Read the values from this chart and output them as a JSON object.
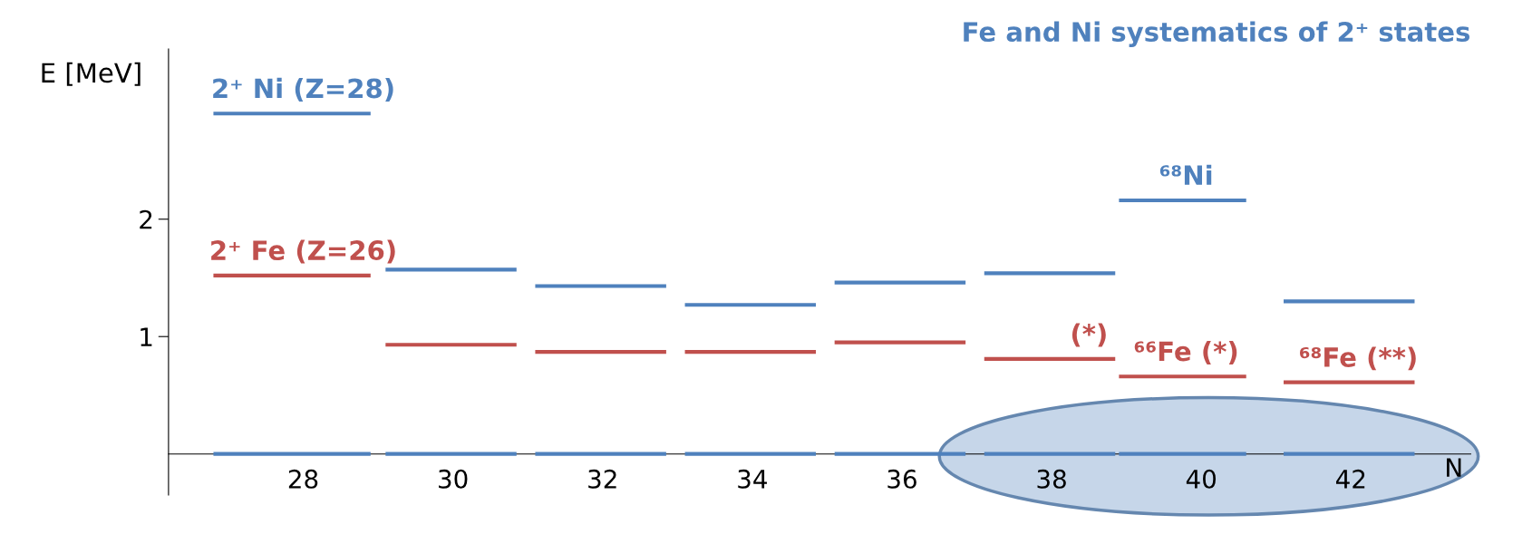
{
  "chart_data": {
    "type": "line",
    "title": "Fe and Ni systematics of 2⁺ states",
    "xlabel": "N",
    "ylabel": "E [MeV]",
    "series": [
      {
        "color": "#4f81bd",
        "x": [
          26.8,
          28.9
        ],
        "values": [
          2.9,
          2.9
        ]
      },
      {
        "color": "#4f81bd",
        "x": [
          29.1,
          30.85
        ],
        "values": [
          1.57,
          1.57
        ]
      },
      {
        "color": "#4f81bd",
        "x": [
          31.1,
          32.85
        ],
        "values": [
          1.43,
          1.43
        ]
      },
      {
        "color": "#4f81bd",
        "x": [
          33.1,
          34.85
        ],
        "values": [
          1.27,
          1.27
        ]
      },
      {
        "color": "#4f81bd",
        "x": [
          35.1,
          36.85
        ],
        "values": [
          1.46,
          1.46
        ]
      },
      {
        "color": "#4f81bd",
        "x": [
          37.1,
          38.85
        ],
        "values": [
          1.54,
          1.54
        ]
      },
      {
        "color": "#4f81bd",
        "x": [
          38.9,
          40.6
        ],
        "values": [
          2.16,
          2.16
        ]
      },
      {
        "color": "#4f81bd",
        "x": [
          41.1,
          42.85
        ],
        "values": [
          1.3,
          1.3
        ]
      },
      {
        "color": "#c0504d",
        "x": [
          26.8,
          28.9
        ],
        "values": [
          1.52,
          1.52
        ]
      },
      {
        "color": "#c0504d",
        "x": [
          29.1,
          30.85
        ],
        "values": [
          0.93,
          0.93
        ]
      },
      {
        "color": "#c0504d",
        "x": [
          31.1,
          32.85
        ],
        "values": [
          0.87,
          0.87
        ]
      },
      {
        "color": "#c0504d",
        "x": [
          33.1,
          34.85
        ],
        "values": [
          0.87,
          0.87
        ]
      },
      {
        "color": "#c0504d",
        "x": [
          35.1,
          36.85
        ],
        "values": [
          0.95,
          0.95
        ]
      },
      {
        "color": "#c0504d",
        "x": [
          37.1,
          38.85
        ],
        "values": [
          0.81,
          0.81
        ]
      },
      {
        "color": "#c0504d",
        "x": [
          38.9,
          40.6
        ],
        "values": [
          0.66,
          0.66
        ]
      },
      {
        "color": "#c0504d",
        "x": [
          41.1,
          42.85
        ],
        "values": [
          0.61,
          0.61
        ]
      },
      {
        "color": "#4f81bd",
        "x": [
          26.8,
          28.9
        ],
        "values": [
          0,
          0
        ]
      },
      {
        "color": "#4f81bd",
        "x": [
          29.1,
          30.85
        ],
        "values": [
          0,
          0
        ]
      },
      {
        "color": "#4f81bd",
        "x": [
          31.1,
          32.85
        ],
        "values": [
          0,
          0
        ]
      },
      {
        "color": "#4f81bd",
        "x": [
          33.1,
          34.85
        ],
        "values": [
          0,
          0
        ]
      },
      {
        "color": "#4f81bd",
        "x": [
          35.1,
          36.85
        ],
        "values": [
          0,
          0
        ]
      },
      {
        "color": "#4f81bd",
        "x": [
          37.1,
          38.85
        ],
        "values": [
          0,
          0
        ]
      },
      {
        "color": "#4f81bd",
        "x": [
          38.9,
          40.6
        ],
        "values": [
          0,
          0
        ]
      },
      {
        "color": "#4f81bd",
        "x": [
          41.1,
          42.85
        ],
        "values": [
          0,
          0
        ]
      }
    ],
    "annotations": [
      {
        "text": "2⁺ Ni (Z=28)",
        "x": 28,
        "y": 2.9
      },
      {
        "text": "2⁺ Fe (Z=26)",
        "x": 28,
        "y": 1.52
      },
      {
        "text": "⁶⁸Ni",
        "x": 39.8,
        "y": 2.16
      },
      {
        "text": "(*)",
        "x": 38.5,
        "y": 0.81
      },
      {
        "text": "⁶⁶Fe (*)",
        "x": 39.8,
        "y": 0.66
      },
      {
        "text": "⁶⁸Fe (**)",
        "x": 42.1,
        "y": 0.61
      }
    ],
    "xlim": [
      26.2,
      43.6
    ],
    "xticks": [
      28,
      30,
      32,
      34,
      36,
      38,
      40,
      42
    ],
    "ylim": [
      -0.35,
      3.45
    ],
    "yticks": [
      1,
      2
    ],
    "grid": false,
    "legend": false
  }
}
